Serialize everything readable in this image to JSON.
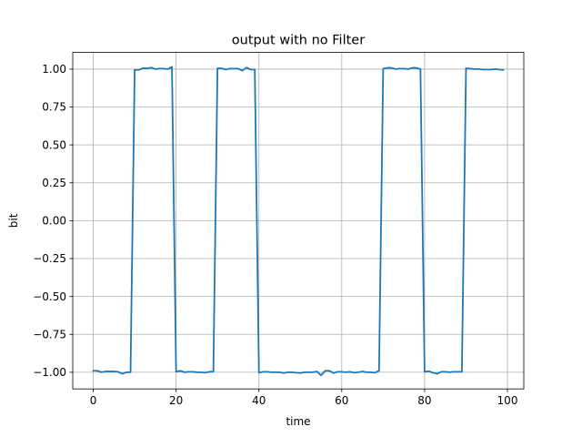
{
  "chart_data": {
    "type": "line",
    "title": "output with no Filter",
    "xlabel": "time",
    "ylabel": "bit",
    "xlim": [
      -4.95,
      103.95
    ],
    "ylim": [
      -1.11,
      1.11
    ],
    "grid": true,
    "x_ticks": [
      0,
      20,
      40,
      60,
      80,
      100
    ],
    "x_tick_labels": [
      "0",
      "20",
      "40",
      "60",
      "80",
      "100"
    ],
    "y_ticks": [
      -1.0,
      -0.75,
      -0.5,
      -0.25,
      0.0,
      0.25,
      0.5,
      0.75,
      1.0
    ],
    "y_tick_labels": [
      "−1.00",
      "−0.75",
      "−0.50",
      "−0.25",
      "0.00",
      "0.25",
      "0.50",
      "0.75",
      "1.00"
    ],
    "series": [
      {
        "color": "#1f77b4",
        "x": [
          0,
          1,
          2,
          3,
          4,
          5,
          6,
          7,
          8,
          9,
          10,
          11,
          12,
          13,
          14,
          15,
          16,
          17,
          18,
          19,
          20,
          21,
          22,
          23,
          24,
          25,
          26,
          27,
          28,
          29,
          30,
          31,
          32,
          33,
          34,
          35,
          36,
          37,
          38,
          39,
          40,
          41,
          42,
          43,
          44,
          45,
          46,
          47,
          48,
          49,
          50,
          51,
          52,
          53,
          54,
          55,
          56,
          57,
          58,
          59,
          60,
          61,
          62,
          63,
          64,
          65,
          66,
          67,
          68,
          69,
          70,
          71,
          72,
          73,
          74,
          75,
          76,
          77,
          78,
          79,
          80,
          81,
          82,
          83,
          84,
          85,
          86,
          87,
          88,
          89,
          90,
          91,
          92,
          93,
          94,
          95,
          96,
          97,
          98,
          99
        ],
        "y": [
          -0.99,
          -0.99,
          -1.0,
          -0.995,
          -0.995,
          -0.995,
          -0.997,
          -1.01,
          -1.0,
          -1.0,
          0.995,
          0.995,
          1.005,
          1.005,
          1.01,
          1.0,
          1.003,
          1.003,
          1.0,
          1.015,
          -0.997,
          -0.99,
          -1.0,
          -0.997,
          -0.997,
          -1.0,
          -1.0,
          -1.003,
          -0.997,
          -0.995,
          1.005,
          1.005,
          0.997,
          1.003,
          1.003,
          1.003,
          0.99,
          1.01,
          0.997,
          0.997,
          -1.003,
          -0.997,
          -0.997,
          -1.0,
          -1.0,
          -1.0,
          -1.005,
          -1.0,
          -1.0,
          -1.003,
          -1.005,
          -1.0,
          -1.0,
          -1.0,
          -0.995,
          -1.02,
          -0.99,
          -0.99,
          -1.005,
          -0.997,
          -0.997,
          -1.0,
          -0.997,
          -1.003,
          -1.0,
          -0.995,
          -1.0,
          -1.0,
          -1.003,
          -0.99,
          1.003,
          1.008,
          1.008,
          1.0,
          1.003,
          1.003,
          1.0,
          1.008,
          1.008,
          1.0,
          -0.997,
          -0.993,
          -1.003,
          -1.01,
          -0.997,
          -0.997,
          -1.0,
          -0.997,
          -0.997,
          -0.997,
          1.005,
          1.003,
          1.0,
          1.0,
          0.997,
          0.997,
          0.997,
          1.0,
          0.997,
          0.995
        ]
      }
    ]
  }
}
